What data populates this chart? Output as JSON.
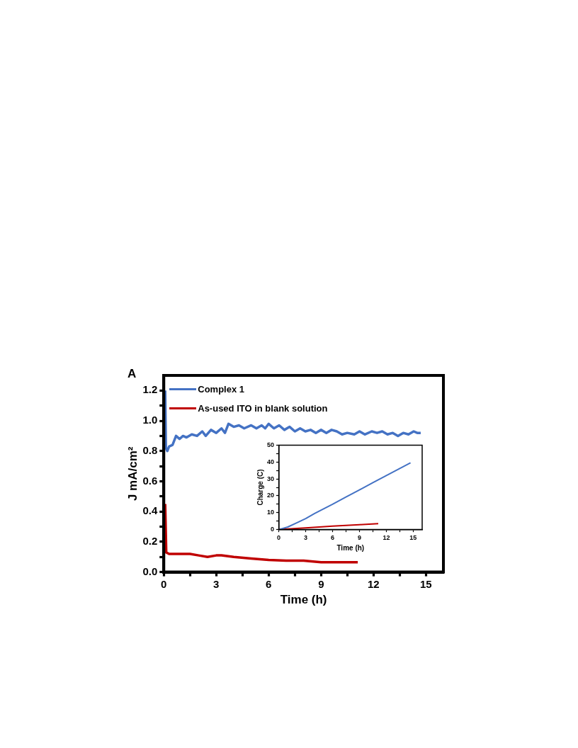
{
  "chart_data": [
    {
      "type": "line",
      "xlabel": "Time (h)",
      "ylabel": "J mA/cm²",
      "annotations": [
        "A"
      ],
      "legend": "top left",
      "xlim": [
        0,
        16
      ],
      "ylim": [
        0,
        1.3
      ],
      "xticks": [
        0,
        {
          "value": 1.5,
          "label": null
        },
        3,
        {
          "value": 4.5,
          "label": null
        },
        6,
        {
          "value": 7.5,
          "label": null
        },
        9,
        {
          "value": 10.5,
          "label": null
        },
        12,
        {
          "value": 13.5,
          "label": null
        },
        15
      ],
      "yticks": [
        {
          "value": 0,
          "label": "0.0"
        },
        {
          "value": 0.1,
          "label": null
        },
        {
          "value": 0.2,
          "label": "0.2"
        },
        {
          "value": 0.3,
          "label": null
        },
        {
          "value": 0.4,
          "label": "0.4"
        },
        {
          "value": 0.5,
          "label": null
        },
        {
          "value": 0.6,
          "label": "0.6"
        },
        {
          "value": 0.7,
          "label": null
        },
        {
          "value": 0.8,
          "label": "0.8"
        },
        {
          "value": 0.9,
          "label": null
        },
        {
          "value": 1.0,
          "label": "1.0"
        },
        {
          "value": 1.1,
          "label": null
        },
        {
          "value": 1.2,
          "label": "1.2"
        }
      ],
      "series": [
        {
          "name": "Complex 1",
          "color": "#4472c4",
          "x": [
            0.08,
            0.12,
            0.2,
            0.3,
            0.5,
            0.7,
            0.9,
            1.1,
            1.3,
            1.6,
            1.9,
            2.2,
            2.4,
            2.7,
            3.0,
            3.3,
            3.5,
            3.7,
            4.0,
            4.3,
            4.6,
            5.0,
            5.3,
            5.6,
            5.8,
            6.0,
            6.3,
            6.6,
            6.9,
            7.2,
            7.5,
            7.8,
            8.1,
            8.4,
            8.7,
            9.0,
            9.3,
            9.6,
            9.9,
            10.2,
            10.5,
            10.9,
            11.2,
            11.5,
            11.9,
            12.2,
            12.5,
            12.8,
            13.1,
            13.4,
            13.7,
            14.0,
            14.3,
            14.5,
            14.7
          ],
          "values": [
            1.2,
            0.82,
            0.8,
            0.83,
            0.84,
            0.9,
            0.88,
            0.9,
            0.89,
            0.91,
            0.9,
            0.93,
            0.9,
            0.94,
            0.92,
            0.95,
            0.92,
            0.98,
            0.96,
            0.97,
            0.95,
            0.97,
            0.95,
            0.97,
            0.95,
            0.98,
            0.95,
            0.97,
            0.94,
            0.96,
            0.93,
            0.95,
            0.93,
            0.94,
            0.92,
            0.94,
            0.92,
            0.94,
            0.93,
            0.91,
            0.92,
            0.91,
            0.93,
            0.91,
            0.93,
            0.92,
            0.93,
            0.91,
            0.92,
            0.9,
            0.92,
            0.91,
            0.93,
            0.92,
            0.92
          ]
        },
        {
          "name": "As-used ITO in blank solution",
          "color": "#c00000",
          "x": [
            0.08,
            0.14,
            0.3,
            1.0,
            1.5,
            2.0,
            2.5,
            3.0,
            3.3,
            4.0,
            5.0,
            6.0,
            7.0,
            8.0,
            9.0,
            10.0,
            11.1
          ],
          "values": [
            0.45,
            0.13,
            0.12,
            0.12,
            0.12,
            0.11,
            0.1,
            0.11,
            0.11,
            0.1,
            0.09,
            0.08,
            0.075,
            0.075,
            0.065,
            0.065,
            0.065
          ]
        }
      ]
    },
    {
      "type": "line",
      "xlabel": "Time (h)",
      "ylabel": "Charge (C)",
      "xlim": [
        0,
        16
      ],
      "ylim": [
        0,
        50
      ],
      "xticks": [
        0,
        {
          "value": 1.5,
          "label": null
        },
        3,
        {
          "value": 4.5,
          "label": null
        },
        6,
        {
          "value": 7.5,
          "label": null
        },
        9,
        {
          "value": 10.5,
          "label": null
        },
        12,
        {
          "value": 13.5,
          "label": null
        },
        15
      ],
      "yticks": [
        0,
        {
          "value": 5,
          "label": null
        },
        10,
        {
          "value": 15,
          "label": null
        },
        20,
        {
          "value": 25,
          "label": null
        },
        30,
        {
          "value": 35,
          "label": null
        },
        40,
        {
          "value": 45,
          "label": null
        },
        50
      ],
      "series": [
        {
          "color": "#4472c4",
          "x": [
            0,
            1,
            2,
            3,
            4,
            5,
            6,
            7.5,
            9,
            10.5,
            12,
            13.5,
            14.7
          ],
          "values": [
            0,
            1.5,
            4,
            6.5,
            9.5,
            12.3,
            15,
            19.3,
            23.5,
            27.8,
            32,
            36.2,
            39.5
          ]
        },
        {
          "color": "#c00000",
          "x": [
            0,
            3,
            6,
            9,
            11.1
          ],
          "values": [
            0,
            1,
            2,
            2.9,
            3.5
          ]
        }
      ]
    }
  ]
}
